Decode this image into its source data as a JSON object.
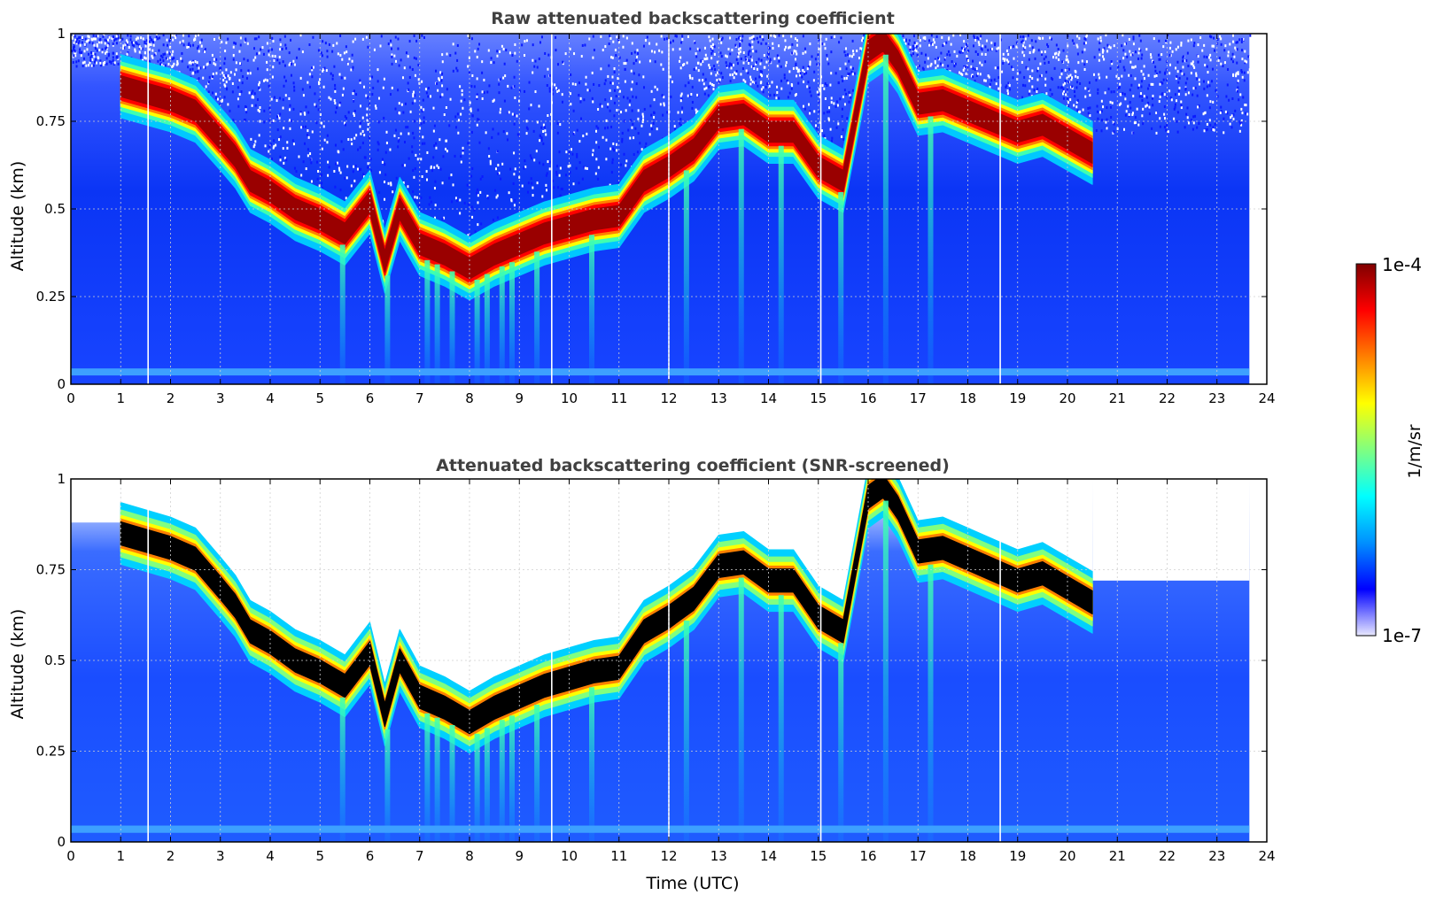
{
  "colormap": [
    "#ffffff",
    "#0000ff",
    "#0090ff",
    "#00ffff",
    "#80ff80",
    "#ffff00",
    "#ff8000",
    "#ff0000",
    "#800000"
  ],
  "screened_saturation_color": "#000000",
  "chart_data": [
    {
      "type": "heatmap",
      "title": "Raw attenuated backscattering coefficient",
      "xlabel": "",
      "ylabel": "Altitude (km)",
      "xlim": [
        0,
        24
      ],
      "ylim": [
        0,
        1
      ],
      "xticks": [
        "0",
        "1",
        "2",
        "3",
        "4",
        "5",
        "6",
        "7",
        "8",
        "9",
        "10",
        "11",
        "12",
        "13",
        "14",
        "15",
        "16",
        "17",
        "18",
        "19",
        "20",
        "21",
        "22",
        "23",
        "24"
      ],
      "yticks": [
        "0",
        "0.25",
        "0.5",
        "0.75",
        "1"
      ],
      "grid": true,
      "data_end_time": 23.65,
      "gaps": [
        1.55,
        9.65,
        12.0,
        15.05,
        18.65
      ],
      "cloud_base": {
        "time": [
          1.0,
          1.5,
          2.0,
          2.5,
          3.0,
          3.3,
          3.6,
          4.0,
          4.5,
          5.0,
          5.5,
          6.0,
          6.3,
          6.6,
          7.0,
          7.5,
          8.0,
          8.5,
          9.0,
          9.5,
          10.0,
          10.5,
          11.0,
          11.5,
          12.0,
          12.5,
          13.0,
          13.5,
          14.0,
          14.5,
          15.0,
          15.5,
          16.0,
          16.3,
          16.6,
          17.0,
          17.5,
          18.0,
          18.5,
          19.0,
          19.5,
          20.0,
          20.5
        ],
        "altitude": [
          0.85,
          0.83,
          0.81,
          0.78,
          0.7,
          0.65,
          0.58,
          0.55,
          0.5,
          0.47,
          0.43,
          0.52,
          0.35,
          0.5,
          0.4,
          0.37,
          0.33,
          0.37,
          0.4,
          0.43,
          0.45,
          0.47,
          0.48,
          0.58,
          0.62,
          0.67,
          0.76,
          0.77,
          0.72,
          0.72,
          0.62,
          0.58,
          0.95,
          0.98,
          0.92,
          0.8,
          0.81,
          0.78,
          0.75,
          0.72,
          0.74,
          0.7,
          0.66
        ]
      }
    },
    {
      "type": "heatmap",
      "title": "Attenuated backscattering coefficient (SNR-screened)",
      "xlabel": "Time (UTC)",
      "ylabel": "Altitude (km)",
      "xlim": [
        0,
        24
      ],
      "ylim": [
        0,
        1
      ],
      "xticks": [
        "0",
        "1",
        "2",
        "3",
        "4",
        "5",
        "6",
        "7",
        "8",
        "9",
        "10",
        "11",
        "12",
        "13",
        "14",
        "15",
        "16",
        "17",
        "18",
        "19",
        "20",
        "21",
        "22",
        "23",
        "24"
      ],
      "yticks": [
        "0",
        "0.25",
        "0.5",
        "0.75",
        "1"
      ],
      "grid": true,
      "data_end_time": 23.65,
      "gaps": [
        1.55,
        9.65,
        12.0,
        15.05,
        18.65
      ],
      "cloud_base": {
        "time": [
          1.0,
          1.5,
          2.0,
          2.5,
          3.0,
          3.3,
          3.6,
          4.0,
          4.5,
          5.0,
          5.5,
          6.0,
          6.3,
          6.6,
          7.0,
          7.5,
          8.0,
          8.5,
          9.0,
          9.5,
          10.0,
          10.5,
          11.0,
          11.5,
          12.0,
          12.5,
          13.0,
          13.5,
          14.0,
          14.5,
          15.0,
          15.5,
          16.0,
          16.3,
          16.6,
          17.0,
          17.5,
          18.0,
          18.5,
          19.0,
          19.5,
          20.0,
          20.5
        ],
        "altitude": [
          0.85,
          0.83,
          0.81,
          0.78,
          0.7,
          0.65,
          0.58,
          0.55,
          0.5,
          0.47,
          0.43,
          0.52,
          0.35,
          0.5,
          0.4,
          0.37,
          0.33,
          0.37,
          0.4,
          0.43,
          0.45,
          0.47,
          0.48,
          0.58,
          0.62,
          0.67,
          0.76,
          0.77,
          0.72,
          0.72,
          0.62,
          0.58,
          0.95,
          0.98,
          0.92,
          0.8,
          0.81,
          0.78,
          0.75,
          0.72,
          0.74,
          0.7,
          0.66
        ]
      }
    }
  ],
  "colorbar": {
    "label": "1/m/sr",
    "max_label": "1e-4",
    "min_label": "1e-7"
  }
}
